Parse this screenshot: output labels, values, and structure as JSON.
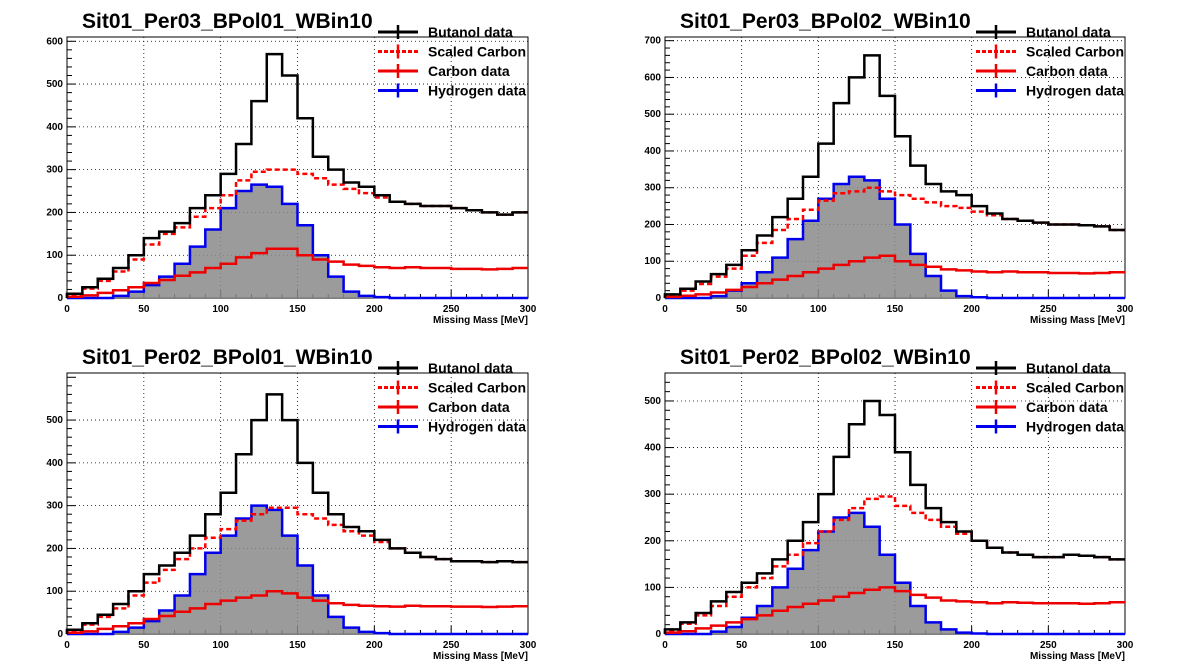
{
  "colors": {
    "butanol": "#000000",
    "scaled_carbon": "#ff0000",
    "carbon": "#ee0000",
    "hydrogen": "#0000ee",
    "hydrogen_fill": "#8a8a8a",
    "grid": "#000000"
  },
  "chart_data": [
    {
      "type": "line",
      "title": "Sit01_Per03_BPol01_WBin10",
      "xlabel": "Missing Mass [MeV]",
      "ylabel": "",
      "xlim": [
        0,
        300
      ],
      "ylim": [
        0,
        610
      ],
      "x_ticks": [
        0,
        50,
        100,
        150,
        200,
        250,
        300
      ],
      "y_ticks": [
        0,
        100,
        200,
        300,
        400,
        500,
        600
      ],
      "grid": true,
      "legend_position": "top-right",
      "x": [
        5,
        15,
        25,
        35,
        45,
        55,
        65,
        75,
        85,
        95,
        105,
        115,
        125,
        135,
        145,
        155,
        165,
        175,
        185,
        195,
        205,
        215,
        225,
        235,
        245,
        255,
        265,
        275,
        285,
        295
      ],
      "series": [
        {
          "name": "Butanol data",
          "style": "solid",
          "values": [
            10,
            25,
            45,
            70,
            100,
            140,
            155,
            175,
            210,
            240,
            290,
            360,
            460,
            570,
            520,
            420,
            330,
            300,
            270,
            260,
            240,
            225,
            220,
            215,
            215,
            210,
            205,
            200,
            195,
            200
          ]
        },
        {
          "name": "Scaled Carbon",
          "style": "dashed",
          "values": [
            8,
            22,
            40,
            62,
            90,
            125,
            150,
            165,
            190,
            210,
            240,
            275,
            295,
            300,
            300,
            290,
            280,
            265,
            255,
            245,
            235,
            225,
            220,
            215,
            215,
            210,
            205,
            200,
            195,
            200
          ]
        },
        {
          "name": "Carbon data",
          "style": "solid",
          "values": [
            3,
            6,
            12,
            18,
            25,
            35,
            42,
            52,
            60,
            70,
            80,
            95,
            105,
            115,
            115,
            100,
            90,
            85,
            78,
            75,
            72,
            70,
            72,
            70,
            70,
            68,
            68,
            67,
            68,
            70
          ]
        },
        {
          "name": "Hydrogen data",
          "style": "filled",
          "values": [
            0,
            0,
            0,
            5,
            15,
            30,
            50,
            80,
            120,
            160,
            210,
            250,
            265,
            260,
            220,
            170,
            100,
            50,
            15,
            5,
            2,
            0,
            0,
            0,
            0,
            0,
            0,
            0,
            0,
            0
          ]
        }
      ]
    },
    {
      "type": "line",
      "title": "Sit01_Per03_BPol02_WBin10",
      "xlabel": "Missing Mass [MeV]",
      "ylabel": "",
      "xlim": [
        0,
        300
      ],
      "ylim": [
        0,
        710
      ],
      "x_ticks": [
        0,
        50,
        100,
        150,
        200,
        250,
        300
      ],
      "y_ticks": [
        0,
        100,
        200,
        300,
        400,
        500,
        600,
        700
      ],
      "grid": true,
      "legend_position": "top-right",
      "x": [
        5,
        15,
        25,
        35,
        45,
        55,
        65,
        75,
        85,
        95,
        105,
        115,
        125,
        135,
        145,
        155,
        165,
        175,
        185,
        195,
        205,
        215,
        225,
        235,
        245,
        255,
        265,
        275,
        285,
        295
      ],
      "series": [
        {
          "name": "Butanol data",
          "style": "solid",
          "values": [
            10,
            25,
            45,
            65,
            90,
            130,
            170,
            220,
            270,
            330,
            420,
            530,
            600,
            660,
            550,
            440,
            360,
            310,
            290,
            280,
            250,
            230,
            215,
            210,
            205,
            200,
            200,
            198,
            195,
            185
          ]
        },
        {
          "name": "Scaled Carbon",
          "style": "dashed",
          "values": [
            8,
            20,
            38,
            58,
            80,
            115,
            150,
            185,
            215,
            240,
            265,
            285,
            290,
            300,
            290,
            280,
            270,
            260,
            250,
            245,
            235,
            225,
            215,
            210,
            205,
            200,
            200,
            198,
            195,
            185
          ]
        },
        {
          "name": "Carbon data",
          "style": "solid",
          "values": [
            3,
            6,
            10,
            15,
            22,
            30,
            40,
            50,
            60,
            70,
            80,
            90,
            100,
            110,
            115,
            100,
            90,
            85,
            78,
            75,
            72,
            70,
            72,
            70,
            70,
            68,
            68,
            67,
            68,
            70
          ]
        },
        {
          "name": "Hydrogen data",
          "style": "filled",
          "values": [
            0,
            0,
            0,
            5,
            20,
            40,
            70,
            110,
            160,
            210,
            270,
            310,
            330,
            320,
            270,
            200,
            120,
            60,
            20,
            5,
            2,
            0,
            0,
            0,
            0,
            0,
            0,
            0,
            0,
            0
          ]
        }
      ]
    },
    {
      "type": "line",
      "title": "Sit01_Per02_BPol01_WBin10",
      "xlabel": "Missing Mass [MeV]",
      "ylabel": "",
      "xlim": [
        0,
        300
      ],
      "ylim": [
        0,
        610
      ],
      "x_ticks": [
        0,
        50,
        100,
        150,
        200,
        250,
        300
      ],
      "y_ticks": [
        0,
        100,
        200,
        300,
        400,
        500
      ],
      "grid": true,
      "legend_position": "top-right",
      "x": [
        5,
        15,
        25,
        35,
        45,
        55,
        65,
        75,
        85,
        95,
        105,
        115,
        125,
        135,
        145,
        155,
        165,
        175,
        185,
        195,
        205,
        215,
        225,
        235,
        245,
        255,
        265,
        275,
        285,
        295
      ],
      "series": [
        {
          "name": "Butanol data",
          "style": "solid",
          "values": [
            10,
            25,
            45,
            70,
            100,
            140,
            160,
            190,
            230,
            280,
            330,
            420,
            500,
            560,
            500,
            400,
            330,
            280,
            250,
            240,
            220,
            200,
            190,
            180,
            175,
            170,
            170,
            168,
            170,
            168
          ]
        },
        {
          "name": "Scaled Carbon",
          "style": "dashed",
          "values": [
            8,
            22,
            40,
            60,
            90,
            120,
            150,
            175,
            200,
            225,
            245,
            265,
            280,
            295,
            295,
            280,
            270,
            255,
            240,
            230,
            215,
            200,
            190,
            180,
            175,
            170,
            170,
            168,
            170,
            168
          ]
        },
        {
          "name": "Carbon data",
          "style": "solid",
          "values": [
            3,
            6,
            12,
            18,
            25,
            35,
            42,
            52,
            60,
            70,
            78,
            85,
            90,
            100,
            95,
            85,
            78,
            72,
            68,
            66,
            65,
            64,
            66,
            65,
            65,
            64,
            64,
            63,
            64,
            65
          ]
        },
        {
          "name": "Hydrogen data",
          "style": "filled",
          "values": [
            0,
            0,
            0,
            5,
            15,
            30,
            55,
            90,
            140,
            190,
            230,
            270,
            300,
            290,
            230,
            160,
            90,
            40,
            15,
            5,
            2,
            0,
            0,
            0,
            0,
            0,
            0,
            0,
            0,
            0
          ]
        }
      ]
    },
    {
      "type": "line",
      "title": "Sit01_Per02_BPol02_WBin10",
      "xlabel": "Missing Mass [MeV]",
      "ylabel": "",
      "xlim": [
        0,
        300
      ],
      "ylim": [
        0,
        560
      ],
      "x_ticks": [
        0,
        50,
        100,
        150,
        200,
        250,
        300
      ],
      "y_ticks": [
        0,
        100,
        200,
        300,
        400,
        500
      ],
      "grid": true,
      "legend_position": "top-right",
      "x": [
        5,
        15,
        25,
        35,
        45,
        55,
        65,
        75,
        85,
        95,
        105,
        115,
        125,
        135,
        145,
        155,
        165,
        175,
        185,
        195,
        205,
        215,
        225,
        235,
        245,
        255,
        265,
        275,
        285,
        295
      ],
      "series": [
        {
          "name": "Butanol data",
          "style": "solid",
          "values": [
            10,
            25,
            45,
            70,
            90,
            110,
            130,
            160,
            200,
            240,
            300,
            380,
            450,
            500,
            470,
            390,
            320,
            270,
            240,
            220,
            200,
            185,
            175,
            170,
            165,
            165,
            170,
            168,
            165,
            160
          ]
        },
        {
          "name": "Scaled Carbon",
          "style": "dashed",
          "values": [
            8,
            22,
            40,
            60,
            80,
            100,
            120,
            145,
            170,
            195,
            220,
            245,
            270,
            290,
            295,
            275,
            260,
            245,
            230,
            215,
            200,
            185,
            175,
            170,
            165,
            165,
            170,
            168,
            165,
            160
          ]
        },
        {
          "name": "Carbon data",
          "style": "solid",
          "values": [
            3,
            6,
            12,
            18,
            25,
            32,
            40,
            50,
            58,
            65,
            72,
            80,
            88,
            95,
            100,
            92,
            84,
            78,
            72,
            70,
            68,
            66,
            68,
            67,
            66,
            66,
            66,
            65,
            66,
            68
          ]
        },
        {
          "name": "Hydrogen data",
          "style": "filled",
          "values": [
            0,
            0,
            0,
            5,
            15,
            35,
            60,
            100,
            140,
            180,
            220,
            250,
            260,
            230,
            170,
            110,
            60,
            25,
            10,
            3,
            1,
            0,
            0,
            0,
            0,
            0,
            0,
            0,
            0,
            0
          ]
        }
      ]
    }
  ]
}
